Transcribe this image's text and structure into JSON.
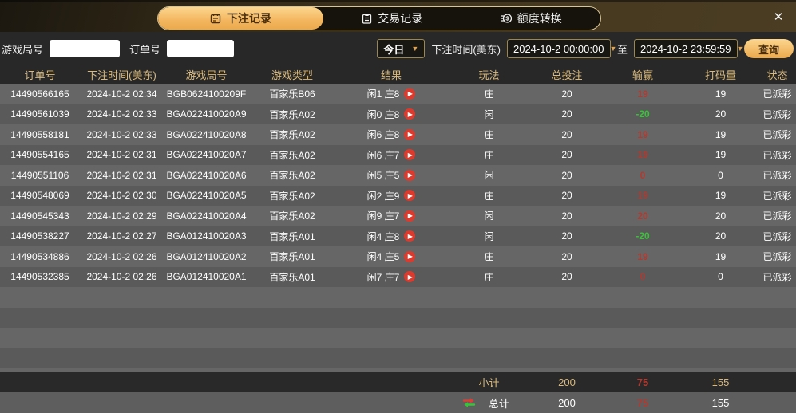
{
  "window": {
    "close_icon": "✕"
  },
  "tabs": [
    {
      "label": "下注记录",
      "active": true
    },
    {
      "label": "交易记录",
      "active": false
    },
    {
      "label": "额度转换",
      "active": false
    }
  ],
  "filters": {
    "game_round_label": "游戏局号",
    "order_no_label": "订单号",
    "range_selected": "今日",
    "bet_time_label": "下注时间(美东)",
    "start_time": "2024-10-2 00:00:00",
    "to_label": "至",
    "end_time": "2024-10-2 23:59:59",
    "query_button": "查询",
    "dropdown_arrow": "▼"
  },
  "table": {
    "columns": [
      "订单号",
      "下注时间(美东)",
      "游戏局号",
      "游戏类型",
      "结果",
      "玩法",
      "总投注",
      "输赢",
      "打码量",
      "状态"
    ],
    "play_icon": "▶",
    "rows": [
      {
        "order_no": "14490566165",
        "bet_time": "2024-10-2 02:34",
        "round_no": "BGB0624100209F",
        "game_type": "百家乐B06",
        "result": "闲1 庄8",
        "play": "庄",
        "total_bet": "20",
        "win_loss": "19",
        "win_loss_color": "red",
        "turnover": "19",
        "status": "已派彩"
      },
      {
        "order_no": "14490561039",
        "bet_time": "2024-10-2 02:33",
        "round_no": "BGA022410020A9",
        "game_type": "百家乐A02",
        "result": "闲0 庄8",
        "play": "闲",
        "total_bet": "20",
        "win_loss": "-20",
        "win_loss_color": "green",
        "turnover": "20",
        "status": "已派彩"
      },
      {
        "order_no": "14490558181",
        "bet_time": "2024-10-2 02:33",
        "round_no": "BGA022410020A8",
        "game_type": "百家乐A02",
        "result": "闲6 庄8",
        "play": "庄",
        "total_bet": "20",
        "win_loss": "19",
        "win_loss_color": "red",
        "turnover": "19",
        "status": "已派彩"
      },
      {
        "order_no": "14490554165",
        "bet_time": "2024-10-2 02:31",
        "round_no": "BGA022410020A7",
        "game_type": "百家乐A02",
        "result": "闲6 庄7",
        "play": "庄",
        "total_bet": "20",
        "win_loss": "19",
        "win_loss_color": "red",
        "turnover": "19",
        "status": "已派彩"
      },
      {
        "order_no": "14490551106",
        "bet_time": "2024-10-2 02:31",
        "round_no": "BGA022410020A6",
        "game_type": "百家乐A02",
        "result": "闲5 庄5",
        "play": "闲",
        "total_bet": "20",
        "win_loss": "0",
        "win_loss_color": "red",
        "turnover": "0",
        "status": "已派彩"
      },
      {
        "order_no": "14490548069",
        "bet_time": "2024-10-2 02:30",
        "round_no": "BGA022410020A5",
        "game_type": "百家乐A02",
        "result": "闲2 庄9",
        "play": "庄",
        "total_bet": "20",
        "win_loss": "19",
        "win_loss_color": "red",
        "turnover": "19",
        "status": "已派彩"
      },
      {
        "order_no": "14490545343",
        "bet_time": "2024-10-2 02:29",
        "round_no": "BGA022410020A4",
        "game_type": "百家乐A02",
        "result": "闲9 庄7",
        "play": "闲",
        "total_bet": "20",
        "win_loss": "20",
        "win_loss_color": "red",
        "turnover": "20",
        "status": "已派彩"
      },
      {
        "order_no": "14490538227",
        "bet_time": "2024-10-2 02:27",
        "round_no": "BGA012410020A3",
        "game_type": "百家乐A01",
        "result": "闲4 庄8",
        "play": "闲",
        "total_bet": "20",
        "win_loss": "-20",
        "win_loss_color": "green",
        "turnover": "20",
        "status": "已派彩"
      },
      {
        "order_no": "14490534886",
        "bet_time": "2024-10-2 02:26",
        "round_no": "BGA012410020A2",
        "game_type": "百家乐A01",
        "result": "闲4 庄5",
        "play": "庄",
        "total_bet": "20",
        "win_loss": "19",
        "win_loss_color": "red",
        "turnover": "19",
        "status": "已派彩"
      },
      {
        "order_no": "14490532385",
        "bet_time": "2024-10-2 02:26",
        "round_no": "BGA012410020A1",
        "game_type": "百家乐A01",
        "result": "闲7 庄7",
        "play": "庄",
        "total_bet": "20",
        "win_loss": "0",
        "win_loss_color": "red",
        "turnover": "0",
        "status": "已派彩"
      }
    ],
    "summary": {
      "subtotal": {
        "label": "小计",
        "total_bet": "200",
        "win_loss": "75",
        "turnover": "155"
      },
      "total": {
        "label": "总计",
        "total_bet": "200",
        "win_loss": "75",
        "turnover": "155"
      }
    }
  },
  "colors": {
    "accent_gold": "#edb45c",
    "header_text": "#d9b97c",
    "win_red": "#b03a30",
    "loss_green": "#36c536",
    "row_light": "#666666",
    "row_dark": "#5a5a5a",
    "play_button_red": "#dd3a2e"
  }
}
